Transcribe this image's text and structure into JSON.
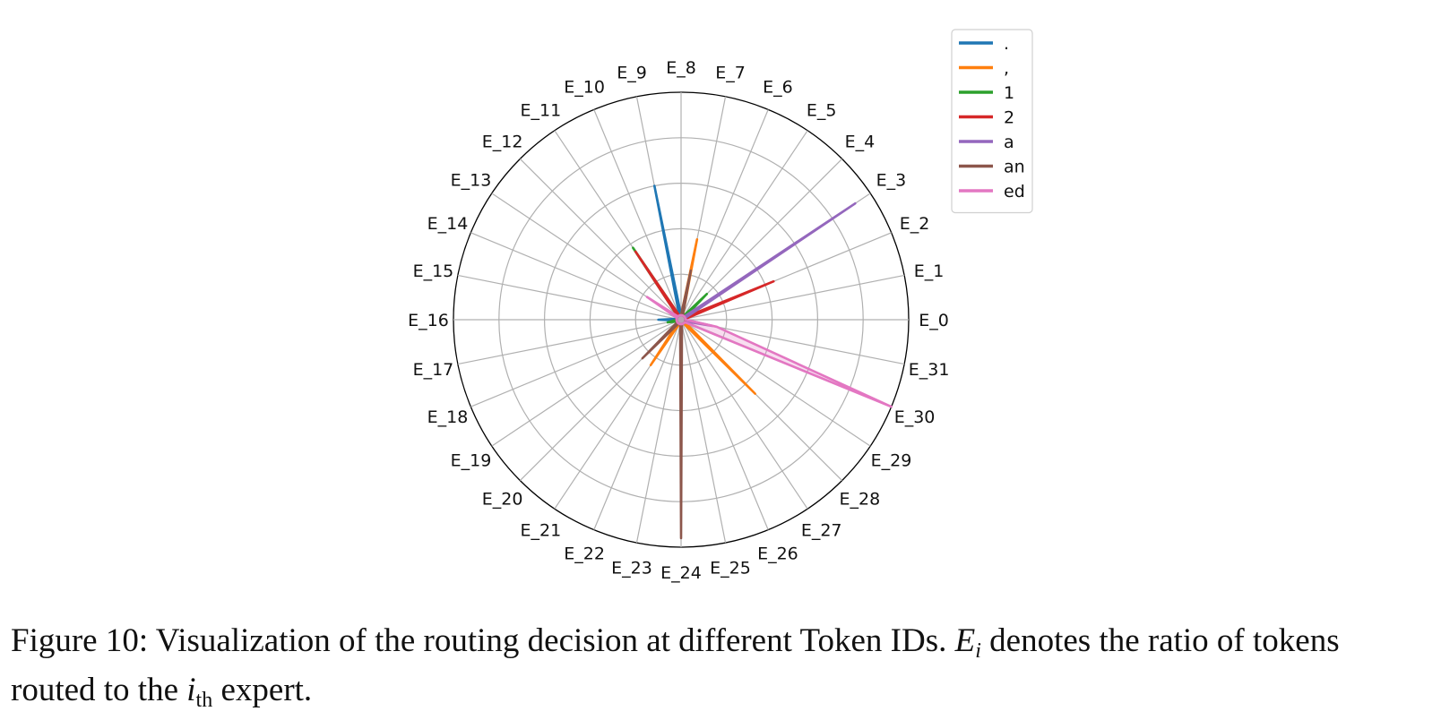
{
  "chart_data": {
    "type": "radar",
    "categories": [
      "E_0",
      "E_1",
      "E_2",
      "E_3",
      "E_4",
      "E_5",
      "E_6",
      "E_7",
      "E_8",
      "E_9",
      "E_10",
      "E_11",
      "E_12",
      "E_13",
      "E_14",
      "E_15",
      "E_16",
      "E_17",
      "E_18",
      "E_19",
      "E_20",
      "E_21",
      "E_22",
      "E_23",
      "E_24",
      "E_25",
      "E_26",
      "E_27",
      "E_28",
      "E_29",
      "E_30",
      "E_31"
    ],
    "rlim": [
      0,
      0.5
    ],
    "rgrid": [
      0.1,
      0.2,
      0.3,
      0.4,
      0.5
    ],
    "radial_tick_labels": false,
    "grid": true,
    "legend_position": "top-right",
    "series": [
      {
        "name": ".",
        "color": "#1f77b4",
        "values": [
          0.01,
          0.01,
          0.01,
          0.01,
          0.01,
          0.01,
          0.01,
          0.01,
          0.01,
          0.3,
          0.01,
          0.01,
          0.01,
          0.01,
          0.01,
          0.01,
          0.05,
          0.01,
          0.01,
          0.01,
          0.01,
          0.01,
          0.01,
          0.01,
          0.01,
          0.01,
          0.01,
          0.01,
          0.01,
          0.01,
          0.01,
          0.01
        ]
      },
      {
        "name": ",",
        "color": "#ff7f0e",
        "values": [
          0.01,
          0.01,
          0.01,
          0.01,
          0.01,
          0.01,
          0.01,
          0.18,
          0.01,
          0.01,
          0.01,
          0.01,
          0.01,
          0.01,
          0.01,
          0.01,
          0.01,
          0.01,
          0.01,
          0.01,
          0.01,
          0.12,
          0.01,
          0.01,
          0.01,
          0.01,
          0.01,
          0.01,
          0.23,
          0.01,
          0.01,
          0.01
        ]
      },
      {
        "name": "1",
        "color": "#2ca02c",
        "values": [
          0.01,
          0.01,
          0.01,
          0.01,
          0.08,
          0.01,
          0.01,
          0.01,
          0.01,
          0.01,
          0.01,
          0.19,
          0.01,
          0.01,
          0.01,
          0.01,
          0.01,
          0.03,
          0.01,
          0.01,
          0.01,
          0.01,
          0.01,
          0.01,
          0.01,
          0.01,
          0.01,
          0.01,
          0.01,
          0.01,
          0.01,
          0.01
        ]
      },
      {
        "name": "2",
        "color": "#d62728",
        "values": [
          0.01,
          0.01,
          0.22,
          0.01,
          0.01,
          0.01,
          0.01,
          0.01,
          0.01,
          0.01,
          0.01,
          0.18,
          0.01,
          0.01,
          0.01,
          0.01,
          0.01,
          0.01,
          0.01,
          0.01,
          0.01,
          0.01,
          0.01,
          0.01,
          0.01,
          0.01,
          0.01,
          0.01,
          0.01,
          0.01,
          0.01,
          0.01
        ]
      },
      {
        "name": "a",
        "color": "#9467bd",
        "values": [
          0.01,
          0.01,
          0.01,
          0.46,
          0.01,
          0.01,
          0.01,
          0.01,
          0.01,
          0.01,
          0.01,
          0.01,
          0.01,
          0.01,
          0.01,
          0.01,
          0.01,
          0.01,
          0.01,
          0.01,
          0.01,
          0.01,
          0.01,
          0.01,
          0.01,
          0.01,
          0.01,
          0.01,
          0.01,
          0.01,
          0.01,
          0.07
        ]
      },
      {
        "name": "an",
        "color": "#8c564b",
        "values": [
          0.01,
          0.01,
          0.01,
          0.01,
          0.01,
          0.01,
          0.01,
          0.11,
          0.01,
          0.01,
          0.01,
          0.01,
          0.01,
          0.01,
          0.01,
          0.01,
          0.01,
          0.01,
          0.01,
          0.01,
          0.12,
          0.01,
          0.01,
          0.01,
          0.48,
          0.01,
          0.01,
          0.01,
          0.01,
          0.01,
          0.01,
          0.01
        ]
      },
      {
        "name": "ed",
        "color": "#e377c2",
        "values": [
          0.01,
          0.01,
          0.01,
          0.01,
          0.01,
          0.01,
          0.01,
          0.01,
          0.01,
          0.01,
          0.01,
          0.01,
          0.01,
          0.09,
          0.01,
          0.01,
          0.01,
          0.01,
          0.01,
          0.01,
          0.01,
          0.01,
          0.01,
          0.01,
          0.01,
          0.01,
          0.01,
          0.01,
          0.01,
          0.01,
          0.5,
          0.08
        ],
        "fill": true
      }
    ]
  },
  "caption": {
    "line1_a": "Figure 10: Visualization of the routing decision at different Token IDs. ",
    "sym_E": "E",
    "sub_i": "i",
    "line1_b": " denotes the ratio of tokens",
    "line2_a": "routed to the ",
    "sym_i": "i",
    "sub_th": "th",
    "line2_b": " expert."
  }
}
